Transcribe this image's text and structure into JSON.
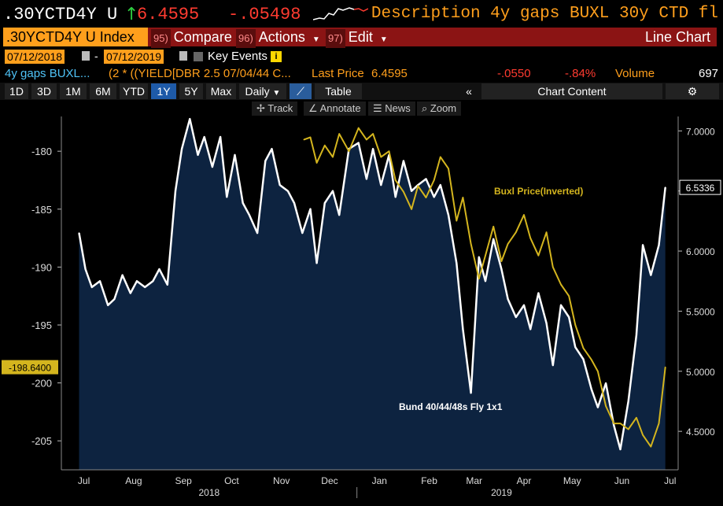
{
  "header": {
    "ticker": ".30YCTD4Y U",
    "price": "6.4595",
    "change": "-.05498",
    "description": "Description 4y gaps BUXL 30y CTD fl"
  },
  "menu": {
    "index_label": ".30YCTD4Y U Index",
    "compare_num": "95)",
    "compare_label": "Compare",
    "actions_num": "96)",
    "actions_label": "Actions",
    "edit_num": "97)",
    "edit_label": "Edit",
    "chart_type": "Line Chart"
  },
  "range": {
    "start": "07/12/2018",
    "end": "07/12/2019",
    "key_events": "Key Events"
  },
  "legend": {
    "name": "4y gaps BUXL...",
    "formula": "(2 * ((YIELD[DBR 2.5 07/04/44 C...",
    "last_price_label": "Last Price",
    "last_price": "6.4595",
    "net_change": "-.0550",
    "pct_change": "-.84%",
    "volume_label": "Volume",
    "volume": "697"
  },
  "periods": [
    "1D",
    "3D",
    "1M",
    "6M",
    "YTD",
    "1Y",
    "5Y",
    "Max"
  ],
  "selected_period": "1Y",
  "frequency": "Daily",
  "table_label": "Table",
  "chart_content_label": "Chart Content",
  "tools": [
    "Track",
    "Annotate",
    "News",
    "Zoom"
  ],
  "colors": {
    "white_series": "#ffffff",
    "yellow_series": "#d4b51e",
    "fill": "#0d2340",
    "accent_orange": "#ff9f1c",
    "down_red": "#ff3b30"
  },
  "chart_data": {
    "type": "line",
    "x_labels": [
      "Jul",
      "Aug",
      "Sep",
      "Oct",
      "Nov",
      "Dec",
      "Jan",
      "Feb",
      "Mar",
      "Apr",
      "May",
      "Jun",
      "Jul"
    ],
    "year_labels": [
      "2018",
      "2019"
    ],
    "left_axis": {
      "ticks": [
        -180,
        -185,
        -190,
        -195,
        -200,
        -205
      ],
      "ylim": [
        -207.5,
        -177
      ]
    },
    "right_axis": {
      "ticks": [
        "7.0000",
        "6.5000",
        "6.0000",
        "5.5000",
        "5.0000",
        "4.5000"
      ],
      "ylim": [
        4.18,
        7.12
      ]
    },
    "left_last_value": "-198.6400",
    "right_last_value": "6.5336",
    "series": [
      {
        "name": "Bund 40/44/48s Fly 1x1",
        "color": "#ffffff",
        "axis": "right",
        "fill": true,
        "x": [
          "2018-07-12",
          "2018-07-16",
          "2018-07-20",
          "2018-07-25",
          "2018-07-30",
          "2018-08-03",
          "2018-08-08",
          "2018-08-13",
          "2018-08-17",
          "2018-08-22",
          "2018-08-27",
          "2018-08-31",
          "2018-09-05",
          "2018-09-10",
          "2018-09-14",
          "2018-09-19",
          "2018-09-24",
          "2018-09-28",
          "2018-10-03",
          "2018-10-08",
          "2018-10-12",
          "2018-10-17",
          "2018-10-22",
          "2018-10-26",
          "2018-10-31",
          "2018-11-05",
          "2018-11-09",
          "2018-11-14",
          "2018-11-19",
          "2018-11-23",
          "2018-11-28",
          "2018-12-03",
          "2018-12-07",
          "2018-12-12",
          "2018-12-17",
          "2018-12-21",
          "2018-12-27",
          "2019-01-02",
          "2019-01-07",
          "2019-01-11",
          "2019-01-16",
          "2019-01-21",
          "2019-01-25",
          "2019-01-30",
          "2019-02-04",
          "2019-02-08",
          "2019-02-13",
          "2019-02-18",
          "2019-02-22",
          "2019-02-27",
          "2019-03-04",
          "2019-03-08",
          "2019-03-13",
          "2019-03-18",
          "2019-03-22",
          "2019-03-27",
          "2019-04-01",
          "2019-04-05",
          "2019-04-10",
          "2019-04-15",
          "2019-04-19",
          "2019-04-24",
          "2019-04-29",
          "2019-05-03",
          "2019-05-08",
          "2019-05-13",
          "2019-05-17",
          "2019-05-22",
          "2019-05-27",
          "2019-05-31",
          "2019-06-05",
          "2019-06-10",
          "2019-06-14",
          "2019-06-19",
          "2019-06-24",
          "2019-06-28",
          "2019-07-03",
          "2019-07-08",
          "2019-07-12"
        ],
        "values": [
          6.15,
          5.85,
          5.7,
          5.75,
          5.55,
          5.6,
          5.8,
          5.65,
          5.75,
          5.7,
          5.75,
          5.85,
          5.72,
          6.5,
          6.85,
          7.1,
          6.8,
          6.95,
          6.7,
          6.95,
          6.45,
          6.8,
          6.4,
          6.3,
          6.15,
          6.75,
          6.85,
          6.55,
          6.5,
          6.4,
          6.15,
          6.35,
          5.9,
          6.4,
          6.5,
          6.3,
          6.85,
          6.9,
          6.6,
          6.85,
          6.55,
          6.8,
          6.45,
          6.75,
          6.5,
          6.55,
          6.6,
          6.45,
          6.55,
          6.3,
          5.9,
          5.35,
          4.82,
          5.95,
          5.75,
          6.1,
          5.85,
          5.6,
          5.45,
          5.55,
          5.35,
          5.65,
          5.4,
          5.05,
          5.55,
          5.45,
          5.2,
          5.1,
          4.85,
          4.7,
          4.9,
          4.55,
          4.35,
          4.75,
          5.3,
          6.05,
          5.8,
          6.05,
          6.53
        ]
      },
      {
        "name": "Buxl Price(Inverted)",
        "color": "#d4b51e",
        "axis": "left",
        "fill": false,
        "x": [
          "2018-11-29",
          "2018-12-03",
          "2018-12-07",
          "2018-12-12",
          "2018-12-17",
          "2018-12-21",
          "2018-12-27",
          "2019-01-02",
          "2019-01-07",
          "2019-01-11",
          "2019-01-16",
          "2019-01-21",
          "2019-01-25",
          "2019-01-30",
          "2019-02-04",
          "2019-02-08",
          "2019-02-13",
          "2019-02-18",
          "2019-02-22",
          "2019-02-27",
          "2019-03-04",
          "2019-03-08",
          "2019-03-13",
          "2019-03-18",
          "2019-03-22",
          "2019-03-27",
          "2019-04-01",
          "2019-04-05",
          "2019-04-10",
          "2019-04-15",
          "2019-04-19",
          "2019-04-24",
          "2019-04-29",
          "2019-05-03",
          "2019-05-08",
          "2019-05-13",
          "2019-05-17",
          "2019-05-22",
          "2019-05-27",
          "2019-05-31",
          "2019-06-05",
          "2019-06-10",
          "2019-06-14",
          "2019-06-19",
          "2019-06-24",
          "2019-06-28",
          "2019-07-03",
          "2019-07-08",
          "2019-07-12"
        ],
        "values": [
          -179.0,
          -178.8,
          -181.0,
          -179.5,
          -180.5,
          -178.5,
          -180.0,
          -178.0,
          -179.0,
          -178.5,
          -180.5,
          -180.0,
          -182.5,
          -183.5,
          -185.0,
          -183.0,
          -184.0,
          -182.5,
          -180.5,
          -181.5,
          -186.0,
          -184.0,
          -188.0,
          -191.0,
          -189.0,
          -186.5,
          -189.5,
          -188.0,
          -187.0,
          -185.5,
          -187.5,
          -189.0,
          -187.0,
          -190.0,
          -191.5,
          -192.5,
          -195.0,
          -197.0,
          -198.0,
          -199.0,
          -202.0,
          -203.5,
          -203.5,
          -204.0,
          -203.0,
          -204.5,
          -205.5,
          -203.5,
          -198.64
        ]
      }
    ],
    "annotations": [
      "Buxl Price(Inverted)",
      "Bund 40/44/48s Fly 1x1"
    ]
  }
}
